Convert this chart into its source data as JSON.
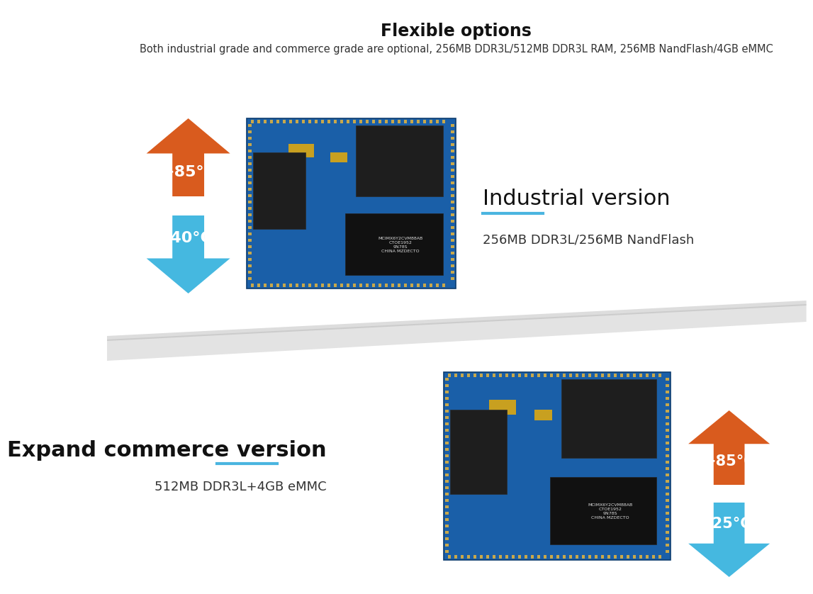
{
  "title": "Flexible options",
  "title_fontsize": 17,
  "subtitle": "Both industrial grade and commerce grade are optional, 256MB DDR3L/512MB DDR3L RAM, 256MB NandFlash/4GB eMMC",
  "subtitle_fontsize": 10.5,
  "bg_color": "#ffffff",
  "section1": {
    "version_title": "Industrial version",
    "version_title_fontsize": 22,
    "version_desc": "256MB DDR3L/256MB NandFlash",
    "version_desc_fontsize": 13,
    "line_color": "#4ab5e0",
    "temp_up": "+85°C",
    "temp_down": "-40°C",
    "arrow_up_color": "#d95b1e",
    "arrow_down_color": "#45b8e0"
  },
  "section2": {
    "version_title": "Expand commerce version",
    "version_title_fontsize": 22,
    "version_desc": "512MB DDR3L+4GB eMMC",
    "version_desc_fontsize": 13,
    "line_color": "#4ab5e0",
    "temp_up": "+85°C",
    "temp_down": "-25°C",
    "arrow_up_color": "#d95b1e",
    "arrow_down_color": "#45b8e0"
  }
}
